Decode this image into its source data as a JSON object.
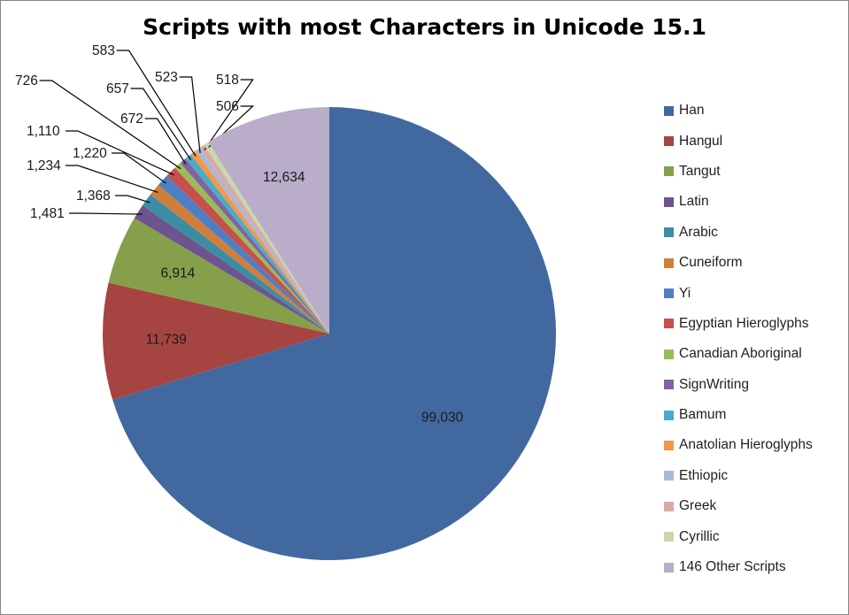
{
  "chart_data": {
    "type": "pie",
    "title": "Scripts with most Characters in Unicode 15.1",
    "legend_position": "right",
    "start_angle_deg": 0,
    "direction": "clockwise",
    "series": [
      {
        "label": "Han",
        "value": 99030,
        "display": "99,030",
        "color": "#4169A0"
      },
      {
        "label": "Hangul",
        "value": 11739,
        "display": "11,739",
        "color": "#A64441"
      },
      {
        "label": "Tangut",
        "value": 6914,
        "display": "6,914",
        "color": "#869F4A"
      },
      {
        "label": "Latin",
        "value": 1481,
        "display": "1,481",
        "color": "#6E548F"
      },
      {
        "label": "Arabic",
        "value": 1368,
        "display": "1,368",
        "color": "#3C8DA3"
      },
      {
        "label": "Cuneiform",
        "value": 1234,
        "display": "1,234",
        "color": "#D07F3A"
      },
      {
        "label": "Yi",
        "value": 1220,
        "display": "1,220",
        "color": "#4E7FC4"
      },
      {
        "label": "Egyptian Hieroglyphs",
        "value": 1110,
        "display": "1,110",
        "color": "#C6504D"
      },
      {
        "label": "Canadian Aboriginal",
        "value": 726,
        "display": "726",
        "color": "#9BBB59"
      },
      {
        "label": "SignWriting",
        "value": 672,
        "display": "672",
        "color": "#8064A2"
      },
      {
        "label": "Bamum",
        "value": 657,
        "display": "657",
        "color": "#4BACC6"
      },
      {
        "label": "Anatolian Hieroglyphs",
        "value": 583,
        "display": "583",
        "color": "#F79646"
      },
      {
        "label": "Ethiopic",
        "value": 523,
        "display": "523",
        "color": "#AAB9D6"
      },
      {
        "label": "Greek",
        "value": 518,
        "display": "518",
        "color": "#D9A9A8"
      },
      {
        "label": "Cyrillic",
        "value": 506,
        "display": "506",
        "color": "#C8D8AC"
      },
      {
        "label": "146 Other Scripts",
        "value": 12634,
        "display": "12,634",
        "color": "#B9ADC9"
      }
    ],
    "outside_label_positions": [
      null,
      null,
      null,
      {
        "x": 34,
        "y": 246
      },
      {
        "x": 86,
        "y": 226
      },
      {
        "x": 30,
        "y": 192
      },
      {
        "x": 82,
        "y": 178
      },
      {
        "x": 30,
        "y": 153
      },
      {
        "x": 17,
        "y": 96
      },
      {
        "x": 136,
        "y": 139
      },
      {
        "x": 120,
        "y": 105
      },
      {
        "x": 104,
        "y": 62
      },
      {
        "x": 175,
        "y": 92
      },
      {
        "x": 244,
        "y": 95
      },
      {
        "x": 244,
        "y": 125
      },
      null
    ]
  }
}
